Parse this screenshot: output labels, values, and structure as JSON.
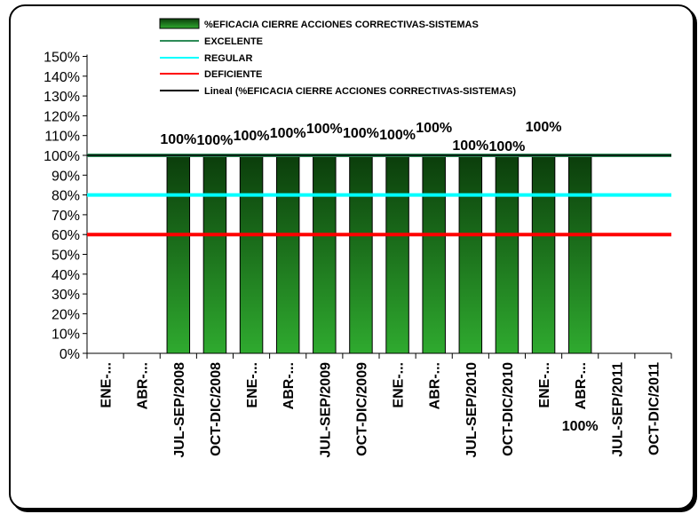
{
  "chart_data": {
    "type": "bar",
    "categories": [
      "ENE-...",
      "ABR-...",
      "JUL-SEP/2008",
      "OCT-DIC/2008",
      "ENE-...",
      "ABR-...",
      "JUL-SEP/2009",
      "OCT-DIC/2009",
      "ENE-...",
      "ABR-...",
      "JUL-SEP/2010",
      "OCT-DIC/2010",
      "ENE-...",
      "ABR-...",
      "JUL-SEP/2011",
      "OCT-DIC/2011"
    ],
    "series": [
      {
        "name": "%EFICACIA CIERRE ACCIONES CORRECTIVAS-SISTEMAS",
        "type": "bar",
        "values": [
          null,
          null,
          100,
          100,
          100,
          100,
          100,
          100,
          100,
          100,
          100,
          100,
          100,
          100,
          null,
          null
        ],
        "labels": [
          "",
          "",
          "100%",
          "100%",
          "100%",
          "100%",
          "100%",
          "100%",
          "100%",
          "100%",
          "100%",
          "100%",
          "100%",
          "100%",
          "",
          ""
        ]
      },
      {
        "name": "EXCELENTE",
        "type": "line",
        "value": 100,
        "color": "#2e8b57"
      },
      {
        "name": "REGULAR",
        "type": "line",
        "value": 80,
        "color": "#00ffff"
      },
      {
        "name": "DEFICIENTE",
        "type": "line",
        "value": 60,
        "color": "#ff0000"
      },
      {
        "name": "Lineal (%EFICACIA CIERRE ACCIONES CORRECTIVAS-SISTEMAS)",
        "type": "trendline",
        "value": 100,
        "color": "#000000"
      }
    ],
    "ylim": [
      0,
      150
    ],
    "yticks": [
      "0%",
      "10%",
      "20%",
      "30%",
      "40%",
      "50%",
      "60%",
      "70%",
      "80%",
      "90%",
      "100%",
      "110%",
      "120%",
      "130%",
      "140%",
      "150%"
    ],
    "bar_color_dark": "#0b3d0b",
    "bar_color_light": "#2faa2f",
    "grid": false,
    "legend_position": "top-center"
  }
}
